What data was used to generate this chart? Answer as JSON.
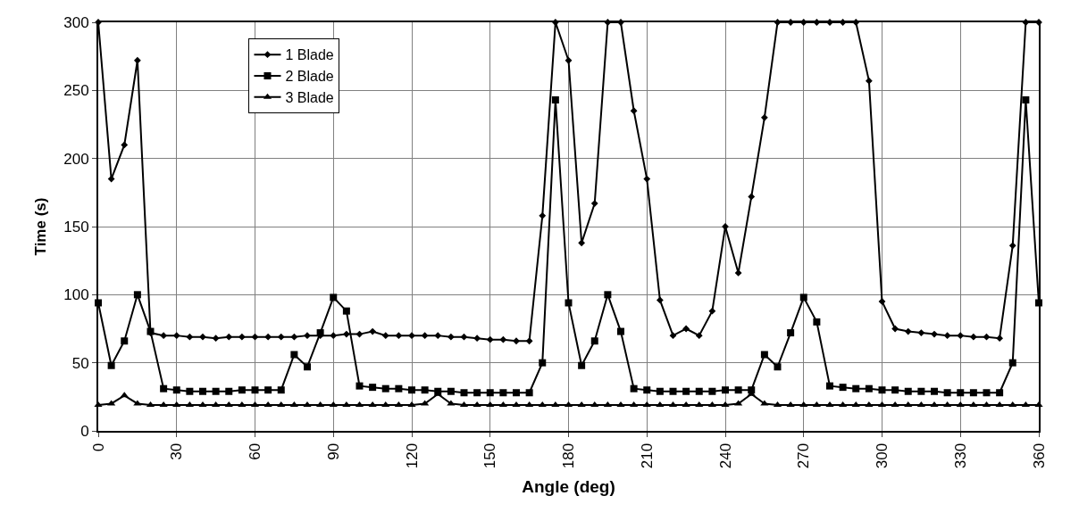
{
  "chart_data": {
    "type": "line",
    "xlabel": "Angle (deg)",
    "ylabel": "Time (s)",
    "x": [
      0,
      5,
      10,
      15,
      20,
      25,
      30,
      35,
      40,
      45,
      50,
      55,
      60,
      65,
      70,
      75,
      80,
      85,
      90,
      95,
      100,
      105,
      110,
      115,
      120,
      125,
      130,
      135,
      140,
      145,
      150,
      155,
      160,
      165,
      170,
      175,
      180,
      185,
      190,
      195,
      200,
      205,
      210,
      215,
      220,
      225,
      230,
      235,
      240,
      245,
      250,
      255,
      260,
      265,
      270,
      275,
      280,
      285,
      290,
      295,
      300,
      305,
      310,
      315,
      320,
      325,
      330,
      335,
      340,
      345,
      350,
      355,
      360
    ],
    "series": [
      {
        "name": "1 Blade",
        "color": "#000000",
        "marker": "diamond",
        "values": [
          300,
          185,
          210,
          272,
          72,
          70,
          70,
          69,
          69,
          68,
          69,
          69,
          69,
          69,
          69,
          69,
          70,
          70,
          70,
          71,
          71,
          73,
          70,
          70,
          70,
          70,
          70,
          69,
          69,
          68,
          67,
          67,
          66,
          66,
          158,
          300,
          272,
          138,
          167,
          300,
          300,
          235,
          185,
          96,
          70,
          75,
          70,
          88,
          150,
          116,
          172,
          230,
          300,
          300,
          300,
          300,
          300,
          300,
          300,
          257,
          95,
          75,
          73,
          72,
          71,
          70,
          70,
          69,
          69,
          68,
          136,
          300,
          300
        ]
      },
      {
        "name": "2 Blade",
        "color": "#000000",
        "marker": "square",
        "values": [
          94,
          48,
          66,
          100,
          73,
          31,
          30,
          29,
          29,
          29,
          29,
          30,
          30,
          30,
          30,
          56,
          47,
          72,
          98,
          88,
          33,
          32,
          31,
          31,
          30,
          30,
          29,
          29,
          28,
          28,
          28,
          28,
          28,
          28,
          50,
          243,
          94,
          48,
          66,
          100,
          73,
          31,
          30,
          29,
          29,
          29,
          29,
          29,
          30,
          30,
          30,
          56,
          47,
          72,
          98,
          80,
          33,
          32,
          31,
          31,
          30,
          30,
          29,
          29,
          29,
          28,
          28,
          28,
          28,
          28,
          50,
          243,
          94
        ]
      },
      {
        "name": "3 Blade",
        "color": "#000000",
        "marker": "triangle",
        "values": [
          19,
          20,
          26,
          20,
          19,
          19,
          19,
          19,
          19,
          19,
          19,
          19,
          19,
          19,
          19,
          19,
          19,
          19,
          19,
          19,
          19,
          19,
          19,
          19,
          19,
          20,
          27,
          20,
          19,
          19,
          19,
          19,
          19,
          19,
          19,
          19,
          19,
          19,
          19,
          19,
          19,
          19,
          19,
          19,
          19,
          19,
          19,
          19,
          19,
          20,
          27,
          20,
          19,
          19,
          19,
          19,
          19,
          19,
          19,
          19,
          19,
          19,
          19,
          19,
          19,
          19,
          19,
          19,
          19,
          19,
          19,
          19,
          19
        ]
      }
    ],
    "xlim": [
      0,
      360
    ],
    "xticks": [
      0,
      30,
      60,
      90,
      120,
      150,
      180,
      210,
      240,
      270,
      300,
      330,
      360
    ],
    "ylim": [
      0,
      300
    ],
    "yticks": [
      0,
      50,
      100,
      150,
      200,
      250,
      300
    ],
    "grid": true,
    "legend": "top left",
    "line_style": "solid"
  }
}
